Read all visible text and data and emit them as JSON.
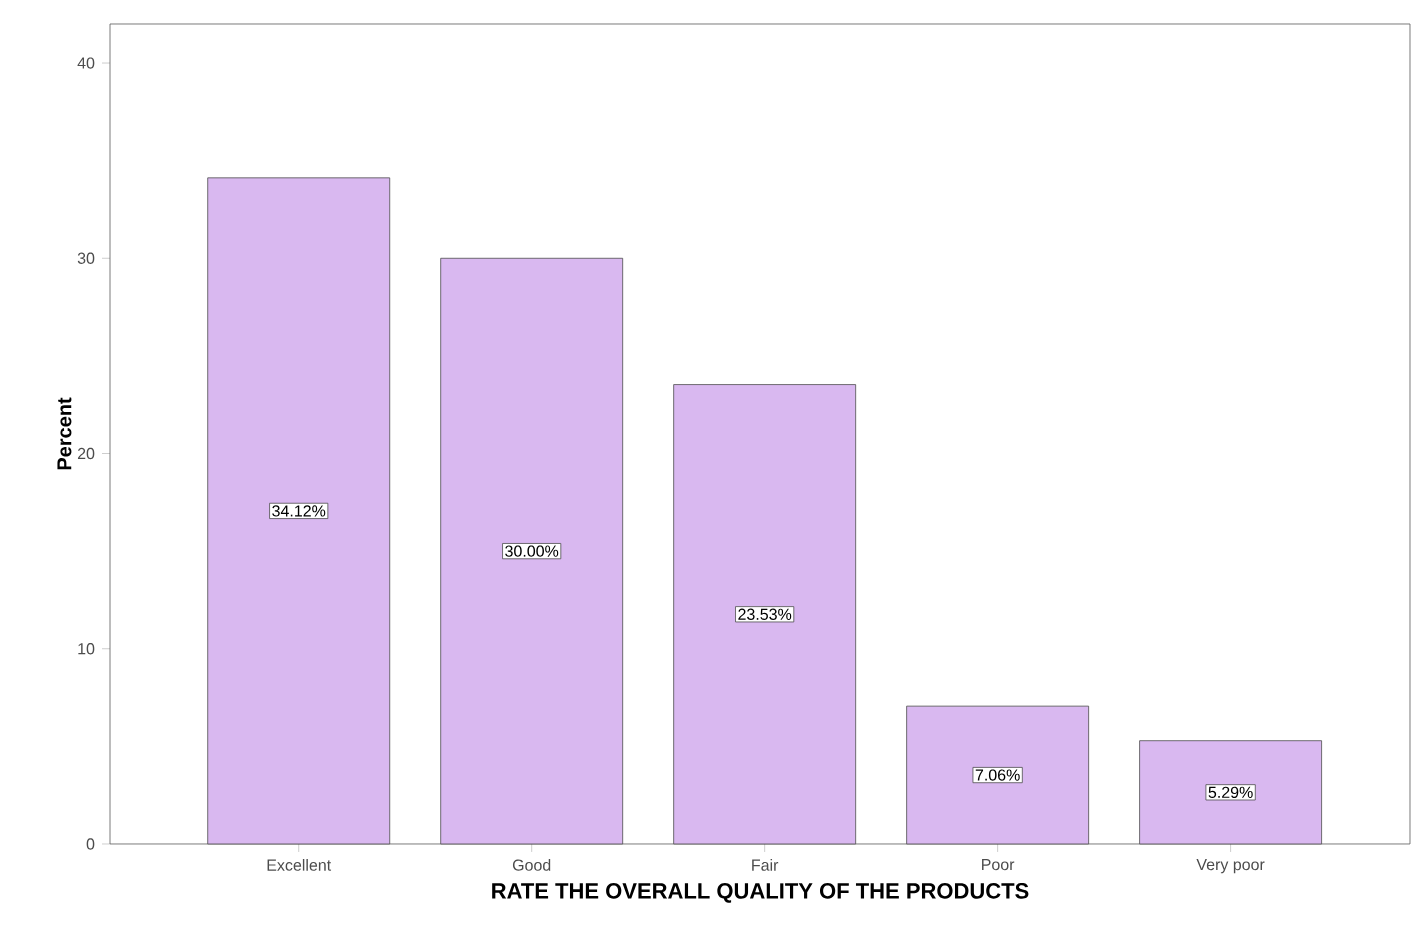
{
  "chart_data": {
    "type": "bar",
    "xlabel": "RATE THE OVERALL QUALITY OF THE PRODUCTS",
    "ylabel": "Percent",
    "categories": [
      "Excellent",
      "Good",
      "Fair",
      "Poor",
      "Very poor"
    ],
    "values": [
      34.12,
      30.0,
      23.53,
      7.06,
      5.29
    ],
    "value_labels": [
      "34.12%",
      "30.00%",
      "23.53%",
      "7.06%",
      "5.29%"
    ],
    "color": "#d9b8f0",
    "ylim": [
      0,
      42
    ],
    "yticks": [
      0,
      10,
      20,
      30,
      40
    ]
  }
}
